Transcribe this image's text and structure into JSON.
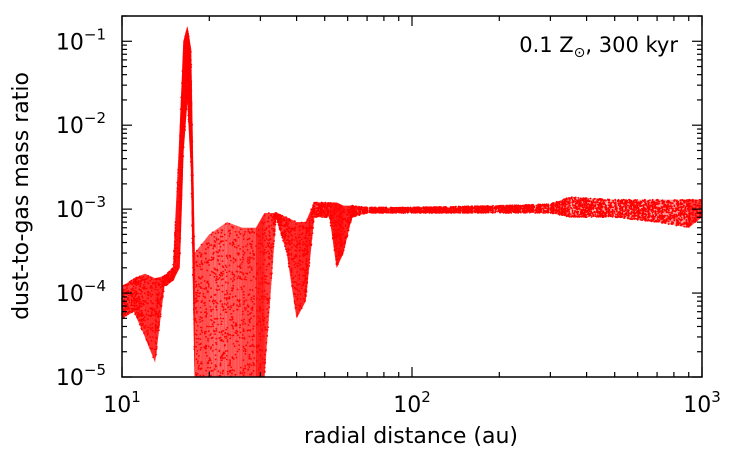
{
  "chart_data": {
    "type": "scatter",
    "title": "",
    "annotation": {
      "text": "0.1 Z",
      "subscript": "⊙",
      "suffix": ", 300 kyr"
    },
    "xlabel": "radial distance (au)",
    "ylabel": "dust-to-gas mass ratio",
    "xscale": "log",
    "yscale": "log",
    "xlim": [
      10,
      1000
    ],
    "ylim": [
      1e-05,
      0.2
    ],
    "xticks": [
      {
        "value": 10,
        "base": "10",
        "exp": "1"
      },
      {
        "value": 100,
        "base": "10",
        "exp": "2"
      },
      {
        "value": 1000,
        "base": "10",
        "exp": "3"
      }
    ],
    "yticks": [
      {
        "value": 1e-05,
        "base": "10",
        "exp": "−5"
      },
      {
        "value": 0.0001,
        "base": "10",
        "exp": "−4"
      },
      {
        "value": 0.001,
        "base": "10",
        "exp": "−3"
      },
      {
        "value": 0.01,
        "base": "10",
        "exp": "−2"
      },
      {
        "value": 0.1,
        "base": "10",
        "exp": "−1"
      }
    ],
    "series": [
      {
        "color": "#ff0000",
        "marker": "dot",
        "envelope": [
          {
            "x": 10.0,
            "lo": 5e-05,
            "hi": 0.00012
          },
          {
            "x": 11.0,
            "lo": 6e-05,
            "hi": 0.00015
          },
          {
            "x": 12.0,
            "lo": 3e-05,
            "hi": 0.00017
          },
          {
            "x": 13.0,
            "lo": 1.5e-05,
            "hi": 0.00015
          },
          {
            "x": 14.0,
            "lo": 0.00012,
            "hi": 0.00016
          },
          {
            "x": 15.0,
            "lo": 0.00014,
            "hi": 0.0002
          },
          {
            "x": 15.8,
            "lo": 0.0002,
            "hi": 0.008
          },
          {
            "x": 16.3,
            "lo": 0.005,
            "hi": 0.1
          },
          {
            "x": 16.8,
            "lo": 0.02,
            "hi": 0.15
          },
          {
            "x": 17.3,
            "lo": 0.003,
            "hi": 0.08
          },
          {
            "x": 17.8,
            "lo": 1e-05,
            "hi": 0.0003
          },
          {
            "x": 20.0,
            "lo": 1e-05,
            "hi": 0.0005
          },
          {
            "x": 23.0,
            "lo": 1e-05,
            "hi": 0.0007
          },
          {
            "x": 26.0,
            "lo": 1e-05,
            "hi": 0.0006
          },
          {
            "x": 29.0,
            "lo": 1e-05,
            "hi": 0.0006
          },
          {
            "x": 31.0,
            "lo": 1e-05,
            "hi": 0.0009
          },
          {
            "x": 34.0,
            "lo": 0.0008,
            "hi": 0.0009
          },
          {
            "x": 37.0,
            "lo": 0.0003,
            "hi": 0.0008
          },
          {
            "x": 40.0,
            "lo": 5e-05,
            "hi": 0.0007
          },
          {
            "x": 43.0,
            "lo": 8e-05,
            "hi": 0.0007
          },
          {
            "x": 46.0,
            "lo": 0.0008,
            "hi": 0.0012
          },
          {
            "x": 52.0,
            "lo": 0.0008,
            "hi": 0.0012
          },
          {
            "x": 55.0,
            "lo": 0.0002,
            "hi": 0.0012
          },
          {
            "x": 58.0,
            "lo": 0.0003,
            "hi": 0.0011
          },
          {
            "x": 62.0,
            "lo": 0.0008,
            "hi": 0.0011
          },
          {
            "x": 70.0,
            "lo": 0.0009,
            "hi": 0.00105
          },
          {
            "x": 100.0,
            "lo": 0.0009,
            "hi": 0.00105
          },
          {
            "x": 200.0,
            "lo": 0.0009,
            "hi": 0.0011
          },
          {
            "x": 300.0,
            "lo": 0.0009,
            "hi": 0.00115
          },
          {
            "x": 350.0,
            "lo": 0.0008,
            "hi": 0.0014
          },
          {
            "x": 500.0,
            "lo": 0.0008,
            "hi": 0.0013
          },
          {
            "x": 700.0,
            "lo": 0.0007,
            "hi": 0.0013
          },
          {
            "x": 900.0,
            "lo": 0.0006,
            "hi": 0.0013
          },
          {
            "x": 1000.0,
            "lo": 0.0008,
            "hi": 0.0013
          }
        ]
      }
    ]
  }
}
